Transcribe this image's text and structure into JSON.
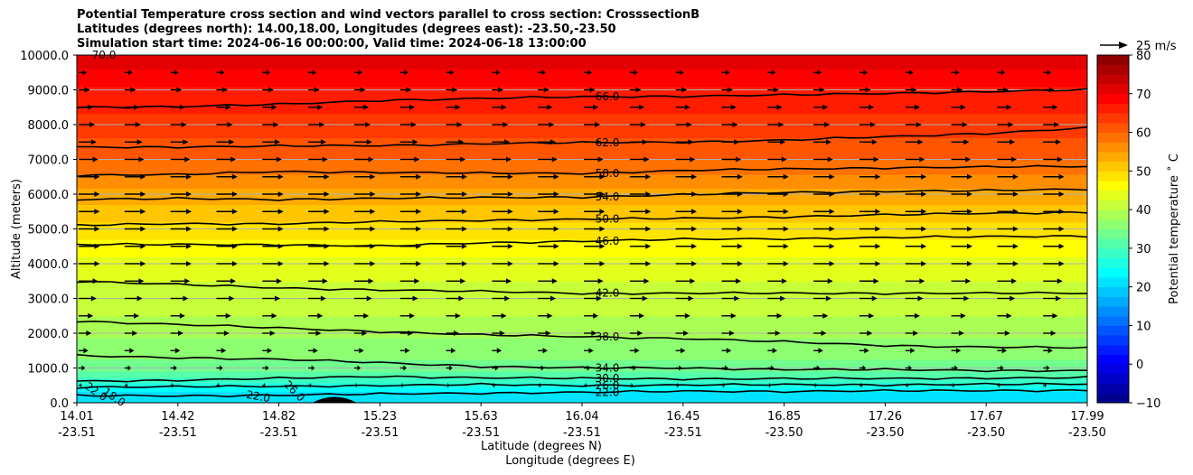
{
  "title": {
    "line1": "Potential Temperature cross section and wind vectors parallel to cross section: CrosssectionB",
    "line2": "Latitudes (degrees north): 14.00,18.00, Longitudes (degrees east): -23.50,-23.50",
    "line3": "Simulation start time: 2024-06-16 00:00:00, Valid time: 2024-06-18 13:00:00"
  },
  "chart_data": {
    "type": "heatmap",
    "ylabel": "Altitude (meters)",
    "xlabel_line1": "Latitude (degrees N)",
    "xlabel_line2": "Longitude (degrees E)",
    "ylim": [
      0,
      10000
    ],
    "y_ticks": [
      "0.0",
      "1000.0",
      "2000.0",
      "3000.0",
      "4000.0",
      "5000.0",
      "6000.0",
      "7000.0",
      "8000.0",
      "9000.0",
      "10000.0"
    ],
    "x_ticks": [
      {
        "lat": "14.01",
        "lon": "-23.51"
      },
      {
        "lat": "14.42",
        "lon": "-23.51"
      },
      {
        "lat": "14.82",
        "lon": "-23.51"
      },
      {
        "lat": "15.23",
        "lon": "-23.51"
      },
      {
        "lat": "15.63",
        "lon": "-23.51"
      },
      {
        "lat": "16.04",
        "lon": "-23.51"
      },
      {
        "lat": "16.45",
        "lon": "-23.51"
      },
      {
        "lat": "16.85",
        "lon": "-23.50"
      },
      {
        "lat": "17.26",
        "lon": "-23.50"
      },
      {
        "lat": "17.67",
        "lon": "-23.50"
      },
      {
        "lat": "17.99",
        "lon": "-23.50"
      }
    ],
    "colorbar": {
      "label": "Potential temperature $^\\circ$C",
      "label_display": "Potential temperature ˚ C",
      "min": -10,
      "max": 80,
      "ticks": [
        "−10",
        "0",
        "10",
        "20",
        "30",
        "40",
        "50",
        "60",
        "70",
        "80"
      ],
      "colormap": "jet"
    },
    "quiver_key": "25 m/s",
    "theta_profile": [
      {
        "z": 0,
        "t": 20
      },
      {
        "z": 300,
        "t": 22
      },
      {
        "z": 600,
        "t": 28
      },
      {
        "z": 1000,
        "t": 34
      },
      {
        "z": 1500,
        "t": 36
      },
      {
        "z": 2000,
        "t": 38
      },
      {
        "z": 2500,
        "t": 40
      },
      {
        "z": 3000,
        "t": 41
      },
      {
        "z": 4000,
        "t": 44
      },
      {
        "z": 5000,
        "t": 49
      },
      {
        "z": 6000,
        "t": 54
      },
      {
        "z": 7000,
        "t": 60
      },
      {
        "z": 8000,
        "t": 64
      },
      {
        "z": 9000,
        "t": 67
      },
      {
        "z": 10000,
        "t": 72
      }
    ],
    "contours": [
      {
        "label": "22.0",
        "z": [
          200,
          200,
          220,
          250,
          280,
          300,
          330,
          330,
          340,
          350,
          360
        ]
      },
      {
        "label": "26.0",
        "z": [
          450,
          460,
          470,
          500,
          520,
          500,
          510,
          520,
          520,
          530,
          540
        ]
      },
      {
        "label": "30.0",
        "z": [
          620,
          650,
          700,
          760,
          720,
          700,
          690,
          690,
          700,
          710,
          720
        ]
      },
      {
        "label": "34.0",
        "z": [
          1350,
          1300,
          1250,
          1150,
          1050,
          1000,
          1000,
          960,
          950,
          930,
          920
        ]
      },
      {
        "label": "38.0",
        "z": [
          2350,
          2250,
          2150,
          2050,
          1950,
          1900,
          1850,
          1750,
          1650,
          1600,
          1580
        ]
      },
      {
        "label": "42.0",
        "z": [
          3500,
          3400,
          3300,
          3250,
          3200,
          3150,
          3150,
          3150,
          3150,
          3150,
          3150
        ]
      },
      {
        "label": "46.0",
        "z": [
          4550,
          4550,
          4550,
          4500,
          4600,
          4650,
          4700,
          4720,
          4750,
          4780,
          4800
        ]
      },
      {
        "label": "50.0",
        "z": [
          5100,
          5150,
          5150,
          5200,
          5250,
          5280,
          5300,
          5350,
          5400,
          5450,
          5480
        ]
      },
      {
        "label": "54.0",
        "z": [
          5850,
          5870,
          5850,
          5880,
          5900,
          5920,
          5980,
          6050,
          6080,
          6100,
          6150
        ]
      },
      {
        "label": "58.0",
        "z": [
          6550,
          6560,
          6650,
          6630,
          6600,
          6600,
          6680,
          6720,
          6760,
          6780,
          6800
        ]
      },
      {
        "label": "62.0",
        "z": [
          7350,
          7360,
          7380,
          7400,
          7450,
          7480,
          7500,
          7550,
          7650,
          7750,
          7900
        ]
      },
      {
        "label": "66.0",
        "z": [
          8500,
          8520,
          8580,
          8700,
          8750,
          8800,
          8820,
          8850,
          8900,
          8950,
          9000
        ]
      },
      {
        "label": "70.0",
        "z": null
      }
    ],
    "extra_labels": [
      "22.0",
      "18.0",
      "22.0",
      "26.0"
    ],
    "wind": [
      {
        "z": 10000,
        "u": 0
      },
      {
        "z": 9500,
        "u": 5
      },
      {
        "z": 9000,
        "u": 7
      },
      {
        "z": 8500,
        "u": 9
      },
      {
        "z": 8000,
        "u": 10
      },
      {
        "z": 7500,
        "u": 11
      },
      {
        "z": 7000,
        "u": 12
      },
      {
        "z": 6500,
        "u": 13
      },
      {
        "z": 6000,
        "u": 13
      },
      {
        "z": 5500,
        "u": 13
      },
      {
        "z": 5000,
        "u": 13
      },
      {
        "z": 4500,
        "u": 13
      },
      {
        "z": 4000,
        "u": 13
      },
      {
        "z": 3500,
        "u": 12
      },
      {
        "z": 3000,
        "u": 11
      },
      {
        "z": 2500,
        "u": 9
      },
      {
        "z": 2000,
        "u": 8
      },
      {
        "z": 1500,
        "u": 6
      },
      {
        "z": 1000,
        "u": 4
      },
      {
        "z": 500,
        "u": 2
      }
    ],
    "terrain": {
      "x_center_index": 2.55,
      "peak_z": 180,
      "half_width_index": 0.22
    }
  },
  "colors": {
    "contour": "#000000",
    "terrain": "#000000",
    "gridline": "#b0b0b0"
  }
}
